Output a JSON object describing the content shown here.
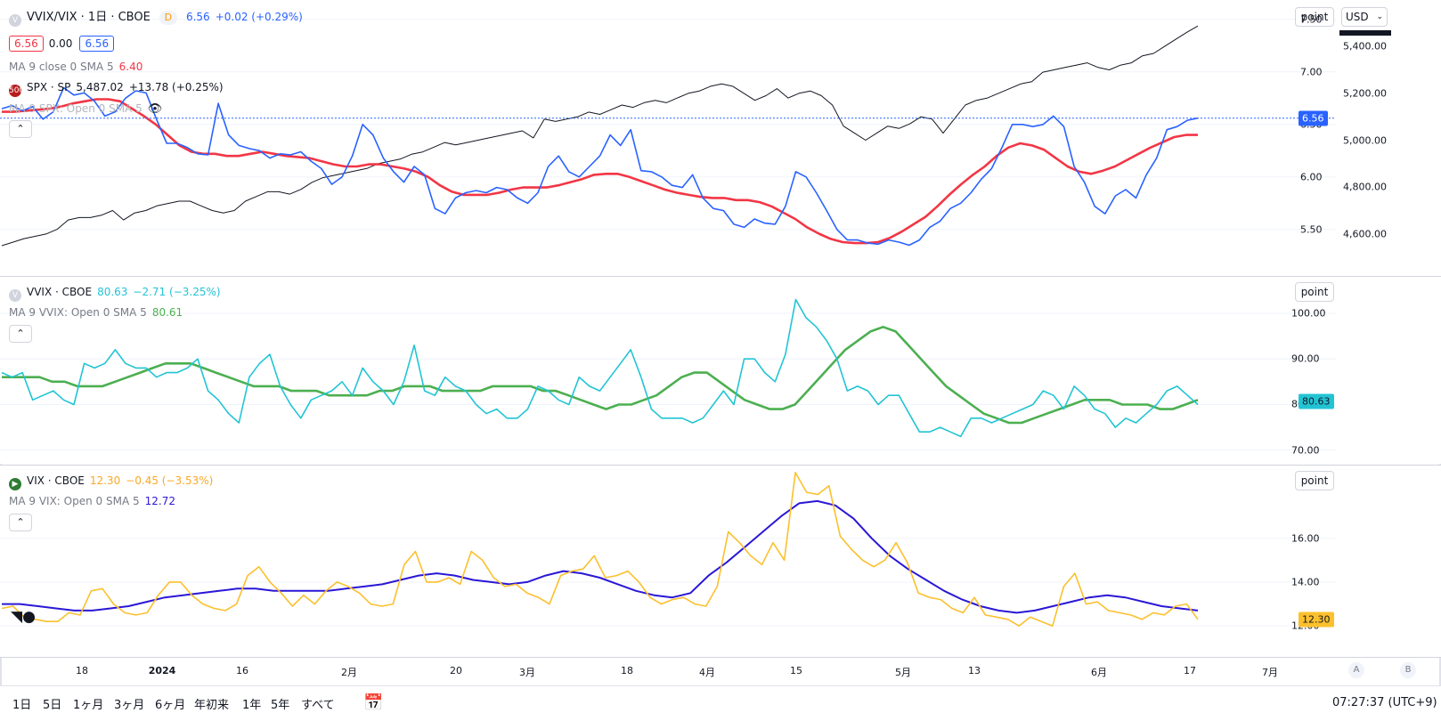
{
  "main_pane": {
    "title": "VVIX/VIX · 1日 · CBOE",
    "interval_badge": "D",
    "price": "6.56",
    "change": "+0.02 (+0.29%)",
    "ohlc_boxes": [
      "6.56",
      "0.00",
      "6.56"
    ],
    "ma_label": "MA 9 close 0 SMA 5",
    "ma_value": "6.40",
    "spx_badge": "500",
    "spx_label": "SPX · SP",
    "spx_price": "5,487.02",
    "spx_change": "+13.78 (+0.25%)",
    "ma_spx_label": "MA 9 SPX: Open 0 SMA 5",
    "scale_button": "point",
    "currency": "USD",
    "y_ticks_left": [
      "7.50",
      "7.00",
      "6.50",
      "6.00",
      "5.50"
    ],
    "y_ticks_right": [
      "5,400.00",
      "5,200.00",
      "5,000.00",
      "4,800.00",
      "4,600.00"
    ],
    "last_tag": "6.56"
  },
  "vvix_pane": {
    "title": "VVIX · CBOE",
    "price": "80.63",
    "change": "−2.71 (−3.25%)",
    "ma_label": "MA 9 VVIX: Open 0 SMA 5",
    "ma_value": "80.61",
    "scale_button": "point",
    "y_ticks": [
      "100.00",
      "90.00",
      "80.00",
      "70.00"
    ],
    "last_tag": "80.63"
  },
  "vix_pane": {
    "title": "VIX · CBOE",
    "price": "12.30",
    "change": "−0.45 (−3.53%)",
    "ma_label": "MA 9 VIX: Open 0 SMA 5",
    "ma_value": "12.72",
    "scale_button": "point",
    "y_ticks": [
      "16.00",
      "14.00",
      "12.00"
    ],
    "last_tag": "12.30"
  },
  "time_axis": [
    "18",
    "2024",
    "16",
    "2月",
    "20",
    "3月",
    "18",
    "4月",
    "15",
    "5月",
    "13",
    "6月",
    "17",
    "7月"
  ],
  "bottom_bar": {
    "ranges": [
      "1日",
      "5日",
      "1ヶ月",
      "3ヶ月",
      "6ヶ月",
      "年初来",
      "1年",
      "5年",
      "すべて"
    ],
    "clock": "07:27:37 (UTC+9)",
    "axis_a": "A",
    "axis_b": "B"
  },
  "colors": {
    "ratio_line": "#2962ff",
    "ratio_ma": "#f23645",
    "spx_line": "#131722",
    "vvix_line": "#22c4d4",
    "vvix_ma": "#4caf50",
    "vix_line": "#fbc02d",
    "vix_ma": "#2a17d6"
  },
  "chart_data": [
    {
      "type": "line",
      "title": "VVIX/VIX · 1日 · CBOE",
      "ylim": [
        5.1,
        7.6
      ],
      "series": [
        {
          "name": "VVIX/VIX",
          "values": [
            6.65,
            6.68,
            6.63,
            6.67,
            6.55,
            6.62,
            6.85,
            6.78,
            6.8,
            6.72,
            6.58,
            6.62,
            6.75,
            6.82,
            6.8,
            6.55,
            6.32,
            6.32,
            6.28,
            6.22,
            6.21,
            6.7,
            6.4,
            6.3,
            6.27,
            6.25,
            6.18,
            6.22,
            6.21,
            6.24,
            6.15,
            6.08,
            5.93,
            6.0,
            6.2,
            6.5,
            6.4,
            6.18,
            6.05,
            5.95,
            6.1,
            6.02,
            5.7,
            5.65,
            5.8,
            5.85,
            5.87,
            5.85,
            5.9,
            5.88,
            5.8,
            5.75,
            5.85,
            6.1,
            6.2,
            6.05,
            6.0,
            6.1,
            6.2,
            6.4,
            6.3,
            6.45,
            6.06,
            6.05,
            6.0,
            5.92,
            5.9,
            6.02,
            5.8,
            5.7,
            5.68,
            5.55,
            5.52,
            5.6,
            5.56,
            5.55,
            5.72,
            6.05,
            6.0,
            5.85,
            5.68,
            5.5,
            5.4,
            5.4,
            5.37,
            5.36,
            5.4,
            5.38,
            5.35,
            5.4,
            5.52,
            5.58,
            5.7,
            5.75,
            5.85,
            5.98,
            6.08,
            6.28,
            6.5,
            6.5,
            6.48,
            6.5,
            6.58,
            6.48,
            6.1,
            5.95,
            5.72,
            5.65,
            5.82,
            5.88,
            5.8,
            6.02,
            6.18,
            6.45,
            6.48,
            6.54,
            6.56
          ]
        },
        {
          "name": "MA 9 close 0 SMA 5",
          "values": [
            6.62,
            6.62,
            6.63,
            6.64,
            6.65,
            6.67,
            6.7,
            6.72,
            6.74,
            6.74,
            6.72,
            6.65,
            6.58,
            6.5,
            6.4,
            6.3,
            6.24,
            6.22,
            6.22,
            6.2,
            6.2,
            6.22,
            6.24,
            6.22,
            6.2,
            6.19,
            6.18,
            6.15,
            6.12,
            6.1,
            6.1,
            6.12,
            6.12,
            6.1,
            6.08,
            6.05,
            6.0,
            5.92,
            5.86,
            5.83,
            5.83,
            5.83,
            5.85,
            5.88,
            5.9,
            5.9,
            5.9,
            5.92,
            5.95,
            5.98,
            6.02,
            6.03,
            6.03,
            6.0,
            5.96,
            5.92,
            5.88,
            5.85,
            5.83,
            5.81,
            5.8,
            5.8,
            5.78,
            5.78,
            5.76,
            5.72,
            5.66,
            5.6,
            5.52,
            5.46,
            5.41,
            5.38,
            5.37,
            5.37,
            5.38,
            5.42,
            5.48,
            5.55,
            5.62,
            5.72,
            5.83,
            5.93,
            6.02,
            6.1,
            6.2,
            6.28,
            6.32,
            6.3,
            6.26,
            6.18,
            6.1,
            6.05,
            6.03,
            6.06,
            6.1,
            6.16,
            6.22,
            6.28,
            6.33,
            6.38,
            6.4,
            6.4
          ]
        },
        {
          "name": "SPX · SP",
          "values": [
            4550,
            4565,
            4580,
            4590,
            4600,
            4620,
            4660,
            4670,
            4670,
            4680,
            4700,
            4660,
            4690,
            4700,
            4720,
            4730,
            4740,
            4740,
            4720,
            4700,
            4690,
            4700,
            4740,
            4760,
            4780,
            4780,
            4770,
            4790,
            4820,
            4840,
            4850,
            4860,
            4870,
            4880,
            4900,
            4910,
            4920,
            4940,
            4950,
            4970,
            4990,
            4980,
            4990,
            5000,
            5010,
            5020,
            5030,
            5040,
            5010,
            5090,
            5080,
            5090,
            5100,
            5120,
            5110,
            5130,
            5150,
            5140,
            5160,
            5170,
            5160,
            5180,
            5200,
            5210,
            5230,
            5240,
            5230,
            5200,
            5170,
            5190,
            5220,
            5180,
            5200,
            5210,
            5190,
            5150,
            5060,
            5030,
            5000,
            5030,
            5060,
            5050,
            5070,
            5100,
            5090,
            5030,
            5090,
            5150,
            5170,
            5180,
            5200,
            5220,
            5240,
            5250,
            5290,
            5300,
            5310,
            5320,
            5330,
            5310,
            5300,
            5320,
            5330,
            5360,
            5370,
            5400,
            5430,
            5460,
            5487
          ]
        }
      ]
    },
    {
      "type": "line",
      "title": "VVIX · CBOE",
      "ylim": [
        68,
        107
      ],
      "series": [
        {
          "name": "VVIX · CBOE",
          "values": [
            87,
            86,
            87,
            81,
            82,
            83,
            81,
            80,
            89,
            88,
            89,
            92,
            89,
            88,
            88,
            86,
            87,
            87,
            88,
            90,
            83,
            81,
            78,
            76,
            86,
            89,
            91,
            84,
            80,
            77,
            81,
            82,
            83,
            85,
            82,
            88,
            85,
            83,
            80,
            85,
            93,
            83,
            82,
            86,
            84,
            83,
            80,
            78,
            79,
            77,
            77,
            79,
            84,
            83,
            81,
            80,
            86,
            84,
            83,
            86,
            89,
            92,
            86,
            79,
            77,
            77,
            77,
            76,
            77,
            80,
            83,
            80,
            90,
            90,
            87,
            85,
            91,
            103,
            99,
            97,
            94,
            90,
            83,
            84,
            83,
            80,
            82,
            82,
            78,
            74,
            74,
            75,
            74,
            73,
            77,
            77,
            76,
            77,
            78,
            79,
            80,
            83,
            82,
            79,
            84,
            82,
            79,
            78,
            75,
            77,
            76,
            78,
            80,
            83,
            84,
            82,
            80
          ]
        },
        {
          "name": "MA 9 VVIX: Open 0 SMA 5",
          "values": [
            86,
            86,
            86,
            86,
            85,
            85,
            84,
            84,
            84,
            85,
            86,
            87,
            88,
            89,
            89,
            89,
            88,
            87,
            86,
            85,
            84,
            84,
            84,
            83,
            83,
            83,
            82,
            82,
            82,
            82,
            83,
            83,
            84,
            84,
            84,
            83,
            83,
            83,
            83,
            84,
            84,
            84,
            84,
            83,
            83,
            82,
            81,
            80,
            79,
            80,
            80,
            81,
            82,
            84,
            86,
            87,
            87,
            85,
            83,
            81,
            80,
            79,
            79,
            80,
            83,
            86,
            89,
            92,
            94,
            96,
            97,
            96,
            93,
            90,
            87,
            84,
            82,
            80,
            78,
            77,
            76,
            76,
            77,
            78,
            79,
            80,
            81,
            81,
            81,
            80,
            80,
            80,
            79,
            79,
            80,
            81
          ]
        }
      ]
    },
    {
      "type": "line",
      "title": "VIX · CBOE",
      "ylim": [
        11.6,
        19.2
      ],
      "series": [
        {
          "name": "VIX · CBOE",
          "values": [
            12.8,
            12.9,
            12.4,
            12.3,
            12.2,
            12.2,
            12.6,
            12.5,
            13.6,
            13.7,
            13.0,
            12.6,
            12.5,
            12.6,
            13.4,
            14.0,
            14.0,
            13.4,
            13.0,
            12.8,
            12.7,
            13.0,
            14.3,
            14.7,
            14.0,
            13.5,
            12.9,
            13.4,
            13.0,
            13.6,
            14.0,
            13.8,
            13.5,
            13.0,
            12.9,
            13.0,
            14.8,
            15.4,
            14.0,
            14.0,
            14.2,
            13.9,
            15.4,
            15.0,
            14.2,
            13.8,
            13.9,
            13.5,
            13.3,
            13.0,
            14.3,
            14.5,
            14.6,
            15.2,
            14.2,
            14.3,
            14.5,
            14.0,
            13.3,
            13.0,
            13.2,
            13.3,
            13.0,
            12.9,
            13.8,
            16.3,
            15.8,
            15.2,
            14.8,
            15.8,
            15.0,
            19.0,
            18.1,
            18.0,
            18.4,
            16.1,
            15.5,
            15.0,
            14.7,
            15.0,
            15.8,
            14.9,
            13.5,
            13.3,
            13.2,
            12.8,
            12.6,
            13.3,
            12.5,
            12.4,
            12.3,
            12.0,
            12.4,
            12.2,
            12.0,
            13.8,
            14.4,
            13.0,
            13.1,
            12.7,
            12.6,
            12.5,
            12.3,
            12.6,
            12.5,
            12.9,
            13.0,
            12.3
          ]
        },
        {
          "name": "MA 9 VIX: Open 0 SMA 5",
          "values": [
            13.0,
            13.0,
            12.9,
            12.8,
            12.7,
            12.7,
            12.8,
            12.9,
            13.1,
            13.3,
            13.4,
            13.5,
            13.6,
            13.7,
            13.7,
            13.6,
            13.6,
            13.6,
            13.6,
            13.7,
            13.8,
            13.9,
            14.1,
            14.3,
            14.4,
            14.3,
            14.1,
            14.0,
            13.9,
            14.0,
            14.3,
            14.5,
            14.4,
            14.2,
            13.9,
            13.6,
            13.4,
            13.3,
            13.5,
            14.3,
            14.9,
            15.6,
            16.3,
            17.0,
            17.6,
            17.7,
            17.5,
            16.9,
            16.0,
            15.2,
            14.6,
            14.1,
            13.6,
            13.2,
            12.9,
            12.7,
            12.6,
            12.7,
            12.9,
            13.1,
            13.3,
            13.4,
            13.3,
            13.1,
            12.9,
            12.8,
            12.7
          ]
        }
      ]
    }
  ]
}
